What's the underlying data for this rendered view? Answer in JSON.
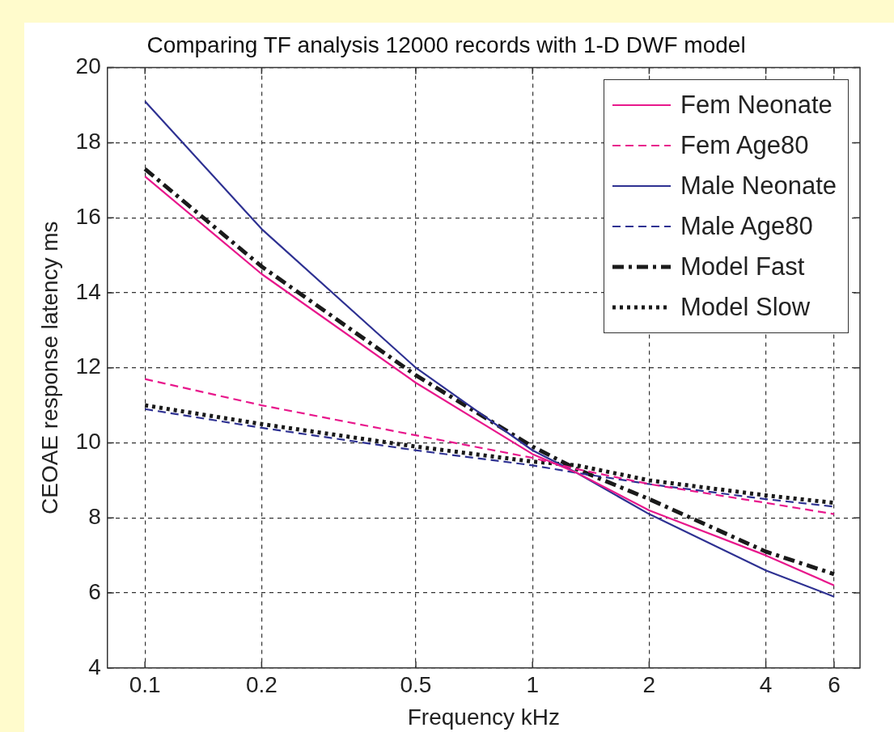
{
  "chart_data": {
    "type": "line",
    "title": "Comparing TF analysis 12000 records with 1-D DWF model",
    "xlabel": "Frequency kHz",
    "ylabel": "CEOAE response latency ms",
    "x": [
      0.1,
      0.2,
      0.5,
      1,
      1.3,
      2,
      4,
      6
    ],
    "series": [
      {
        "name": "Fem Neonate",
        "color": "#e8188c",
        "line_style": "solid",
        "values": [
          17.1,
          14.5,
          11.6,
          9.7,
          9.2,
          8.2,
          7.0,
          6.2
        ]
      },
      {
        "name": "Fem Age80",
        "color": "#e8188c",
        "line_style": "dashed",
        "values": [
          11.7,
          11.0,
          10.2,
          9.6,
          9.3,
          8.9,
          8.4,
          8.1
        ]
      },
      {
        "name": "Male Neonate",
        "color": "#2e3192",
        "line_style": "solid",
        "values": [
          19.1,
          15.7,
          12.0,
          9.8,
          9.2,
          8.1,
          6.6,
          5.9
        ]
      },
      {
        "name": "Male Age80",
        "color": "#2e3192",
        "line_style": "dashed",
        "values": [
          10.9,
          10.4,
          9.8,
          9.4,
          9.2,
          8.9,
          8.5,
          8.3
        ]
      },
      {
        "name": "Model Fast",
        "color": "#1a1a1a",
        "line_style": "dashdot",
        "values": [
          17.3,
          14.7,
          11.8,
          9.9,
          9.3,
          8.5,
          7.1,
          6.5
        ]
      },
      {
        "name": "Model Slow",
        "color": "#1a1a1a",
        "line_style": "dotted",
        "values": [
          11.0,
          10.5,
          9.9,
          9.5,
          9.4,
          9.0,
          8.6,
          8.4
        ]
      }
    ],
    "log": "x",
    "xlim": [
      0.08,
      7
    ],
    "xticks": [
      0.1,
      0.2,
      0.5,
      1,
      2,
      4,
      6
    ],
    "ylim": [
      4,
      20
    ],
    "yticks": [
      4,
      6,
      8,
      10,
      12,
      14,
      16,
      18,
      20
    ],
    "grid": true,
    "legend": "top right",
    "marker": "none"
  }
}
